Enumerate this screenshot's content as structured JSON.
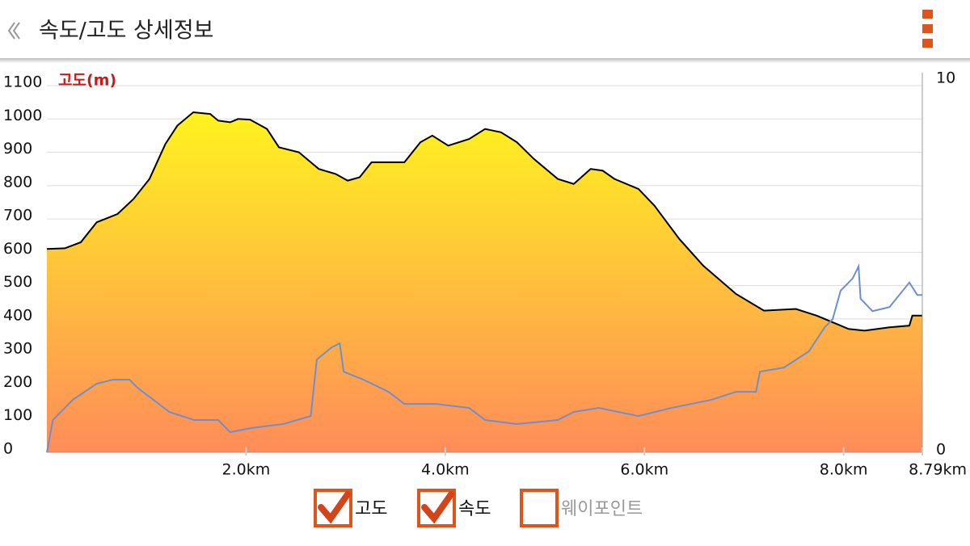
{
  "header": {
    "title": "속도/고도 상세정보"
  },
  "chart_data": {
    "type": "area",
    "ylabel": "고도(m)",
    "xlim": [
      0,
      8.79
    ],
    "xticks": [
      {
        "value": 2,
        "label": "2.0km"
      },
      {
        "value": 4,
        "label": "4.0km"
      },
      {
        "value": 6,
        "label": "6.0km"
      },
      {
        "value": 8,
        "label": "8.0km"
      },
      {
        "value": 8.79,
        "label": "8.79km"
      }
    ],
    "ylim": [
      0,
      1100
    ],
    "yticks": [
      0,
      100,
      200,
      300,
      400,
      500,
      600,
      700,
      800,
      900,
      1000,
      1100
    ],
    "y2lim": [
      0,
      10
    ],
    "y2ticks": [
      0,
      10
    ],
    "grid": true,
    "series": [
      {
        "name": "고도",
        "type": "area",
        "color": "#000000",
        "gradient": [
          "#fff31f",
          "#ff8c5a"
        ],
        "x": [
          0,
          0.18,
          0.34,
          0.5,
          0.71,
          0.87,
          1.03,
          1.19,
          1.31,
          1.47,
          1.64,
          1.72,
          1.84,
          1.92,
          2.04,
          2.21,
          2.33,
          2.53,
          2.73,
          2.9,
          3.02,
          3.14,
          3.26,
          3.59,
          3.75,
          3.87,
          4.03,
          4.24,
          4.4,
          4.56,
          4.72,
          4.89,
          5.13,
          5.29,
          5.46,
          5.58,
          5.7,
          5.94,
          6.1,
          6.35,
          6.59,
          6.92,
          7.2,
          7.52,
          7.73,
          8.05,
          8.21,
          8.46,
          8.66,
          8.69,
          8.79
        ],
        "values": [
          610,
          612,
          630,
          690,
          715,
          760,
          820,
          925,
          980,
          1020,
          1015,
          995,
          990,
          1000,
          998,
          970,
          915,
          900,
          850,
          835,
          815,
          825,
          870,
          870,
          930,
          950,
          920,
          940,
          970,
          960,
          930,
          880,
          820,
          805,
          850,
          845,
          820,
          790,
          740,
          640,
          560,
          475,
          425,
          430,
          410,
          370,
          365,
          375,
          380,
          410,
          410
        ]
      },
      {
        "name": "속도",
        "type": "line",
        "axis": "y2",
        "color": "#6b8fd0",
        "x": [
          0,
          0.06,
          0.26,
          0.5,
          0.66,
          0.83,
          0.91,
          1.07,
          1.23,
          1.48,
          1.72,
          1.84,
          2.05,
          2.37,
          2.65,
          2.71,
          2.86,
          2.94,
          2.98,
          3.18,
          3.43,
          3.59,
          3.91,
          4.24,
          4.4,
          4.72,
          5.13,
          5.29,
          5.54,
          5.94,
          6.27,
          6.67,
          6.92,
          7.12,
          7.16,
          7.4,
          7.65,
          7.81,
          7.89,
          7.97,
          8.09,
          8.15,
          8.17,
          8.29,
          8.46,
          8.66,
          8.74,
          8.79
        ],
        "values": [
          0,
          0.88,
          1.43,
          1.87,
          1.98,
          1.98,
          1.76,
          1.43,
          1.1,
          0.88,
          0.88,
          0.55,
          0.66,
          0.77,
          0.99,
          2.53,
          2.86,
          2.97,
          2.2,
          1.98,
          1.65,
          1.32,
          1.32,
          1.21,
          0.88,
          0.77,
          0.88,
          1.1,
          1.21,
          0.99,
          1.21,
          1.43,
          1.65,
          1.65,
          2.2,
          2.31,
          2.75,
          3.41,
          3.63,
          4.41,
          4.74,
          5.07,
          4.19,
          3.85,
          3.96,
          4.63,
          4.29,
          4.29
        ]
      }
    ],
    "toggles": [
      {
        "label": "고도",
        "checked": true
      },
      {
        "label": "속도",
        "checked": true
      },
      {
        "label": "웨이포인트",
        "checked": false
      }
    ]
  }
}
